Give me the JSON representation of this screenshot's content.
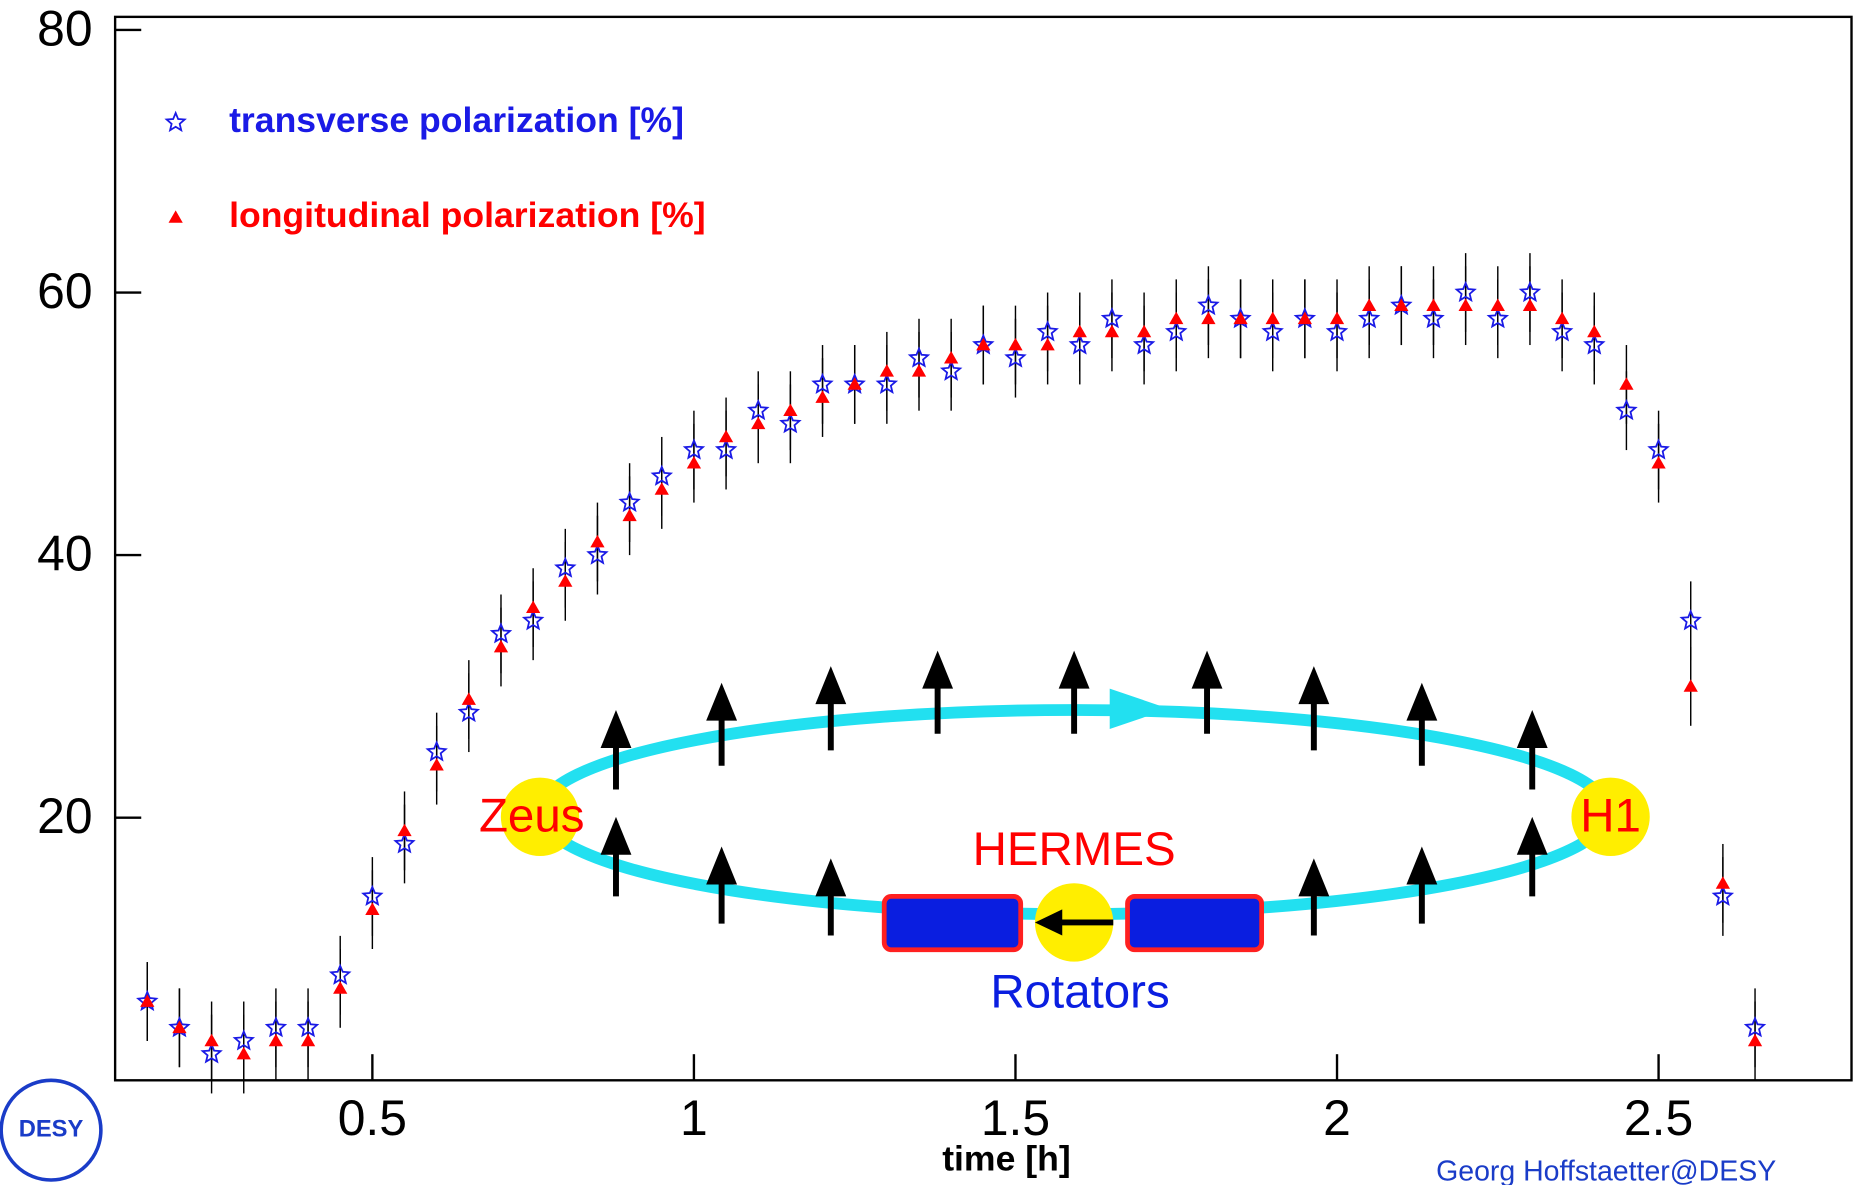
{
  "chart_data": {
    "type": "scatter",
    "x": [
      0.15,
      0.2,
      0.25,
      0.3,
      0.35,
      0.4,
      0.45,
      0.5,
      0.55,
      0.6,
      0.65,
      0.7,
      0.75,
      0.8,
      0.85,
      0.9,
      0.95,
      1.0,
      1.05,
      1.1,
      1.15,
      1.2,
      1.25,
      1.3,
      1.35,
      1.4,
      1.45,
      1.5,
      1.55,
      1.6,
      1.65,
      1.7,
      1.75,
      1.8,
      1.85,
      1.9,
      1.95,
      2.0,
      2.05,
      2.1,
      2.15,
      2.2,
      2.25,
      2.3,
      2.35,
      2.4,
      2.45,
      2.5,
      2.55,
      2.6,
      2.65
    ],
    "series": [
      {
        "name": "transverse polarization   [%]",
        "color": "#1a1ae6",
        "marker": "star",
        "error": 3,
        "values": [
          6,
          4,
          2,
          3,
          4,
          4,
          8,
          14,
          18,
          25,
          28,
          34,
          35,
          39,
          40,
          44,
          46,
          48,
          48,
          51,
          50,
          53,
          53,
          53,
          55,
          54,
          56,
          55,
          57,
          56,
          58,
          56,
          57,
          59,
          58,
          57,
          58,
          57,
          58,
          59,
          58,
          60,
          58,
          60,
          57,
          56,
          51,
          48,
          35,
          14,
          4
        ]
      },
      {
        "name": "longitudinal polarization [%]",
        "color": "#ff0000",
        "marker": "triangle",
        "error": 3,
        "values": [
          6,
          4,
          3,
          2,
          3,
          3,
          7,
          13,
          19,
          24,
          29,
          33,
          36,
          38,
          41,
          43,
          45,
          47,
          49,
          50,
          51,
          52,
          53,
          54,
          54,
          55,
          56,
          56,
          56,
          57,
          57,
          57,
          58,
          58,
          58,
          58,
          58,
          58,
          59,
          59,
          59,
          59,
          59,
          59,
          58,
          57,
          53,
          47,
          30,
          15,
          3
        ]
      }
    ],
    "xlim": [
      0.1,
      2.8
    ],
    "ylim": [
      0,
      80
    ],
    "xticks": [
      0.5,
      1,
      1.5,
      2,
      2.5
    ],
    "yticks": [
      20,
      40,
      60,
      80
    ],
    "xlabel": "time [h]",
    "legend": "upper left",
    "annotations": [
      "Zeus",
      "H1",
      "HERMES",
      "Rotators"
    ],
    "credit": "Georg Hoffstaetter@DESY",
    "logo": "DESY"
  }
}
